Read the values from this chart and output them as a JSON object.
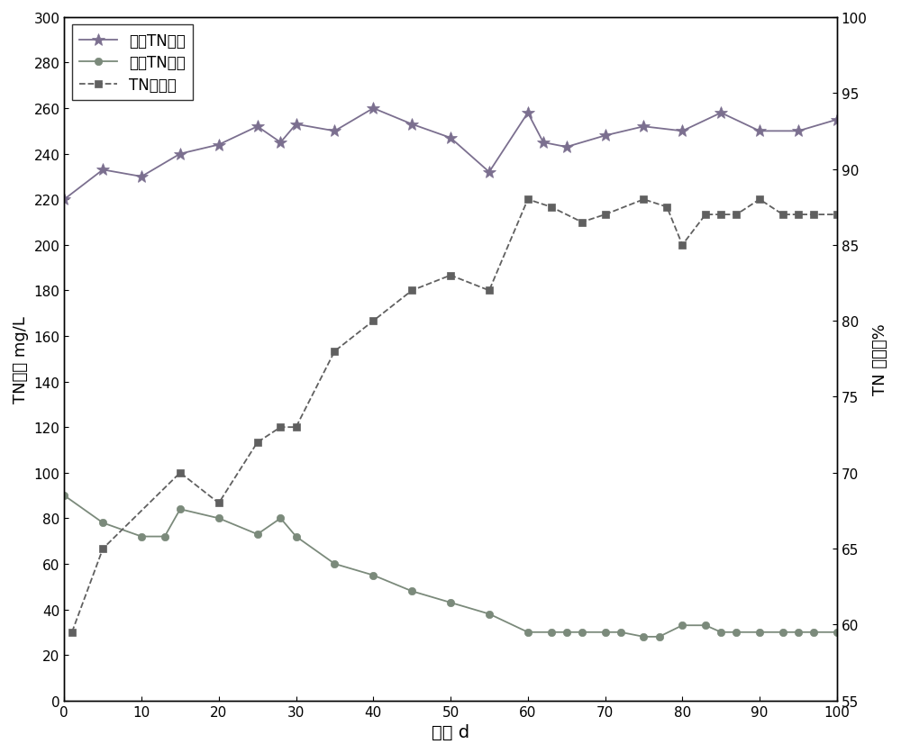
{
  "title": "",
  "xlabel": "时间 d",
  "ylabel_left": "TN浓度 mg/L",
  "ylabel_right": "TN 去除率%",
  "xlim": [
    0,
    100
  ],
  "ylim_left": [
    0,
    300
  ],
  "ylim_right": [
    55,
    100
  ],
  "xticks": [
    0,
    10,
    20,
    30,
    40,
    50,
    60,
    70,
    80,
    90,
    100
  ],
  "yticks_left": [
    0,
    20,
    40,
    60,
    80,
    100,
    120,
    140,
    160,
    180,
    200,
    220,
    240,
    260,
    280,
    300
  ],
  "yticks_right": [
    55,
    60,
    65,
    70,
    75,
    80,
    85,
    90,
    95,
    100
  ],
  "influent_x": [
    0,
    5,
    10,
    15,
    20,
    25,
    28,
    30,
    35,
    40,
    45,
    50,
    55,
    60,
    62,
    65,
    70,
    75,
    80,
    85,
    90,
    95,
    100
  ],
  "influent_y": [
    220,
    233,
    230,
    240,
    244,
    252,
    245,
    253,
    250,
    260,
    253,
    247,
    232,
    258,
    245,
    243,
    248,
    252,
    250,
    258,
    250,
    250,
    255
  ],
  "effluent_x": [
    0,
    5,
    10,
    13,
    15,
    20,
    25,
    28,
    30,
    35,
    40,
    45,
    50,
    55,
    60,
    63,
    65,
    67,
    70,
    72,
    75,
    77,
    80,
    83,
    85,
    87,
    90,
    93,
    95,
    97,
    100
  ],
  "effluent_y": [
    90,
    78,
    72,
    72,
    84,
    80,
    73,
    80,
    72,
    60,
    55,
    48,
    43,
    38,
    30,
    30,
    30,
    30,
    30,
    30,
    28,
    28,
    33,
    33,
    30,
    30,
    30,
    30,
    30,
    30,
    30
  ],
  "removal_x": [
    1,
    5,
    15,
    20,
    25,
    28,
    30,
    35,
    40,
    45,
    50,
    55,
    60,
    63,
    67,
    70,
    75,
    78,
    80,
    83,
    85,
    87,
    90,
    93,
    95,
    97,
    100
  ],
  "removal_y": [
    59.5,
    65,
    70,
    68,
    72,
    73,
    73,
    78,
    80,
    82,
    83,
    82,
    88,
    87.5,
    86.5,
    87,
    88,
    87.5,
    85,
    87,
    87,
    87,
    88,
    87,
    87,
    87,
    87
  ],
  "color_influent": "#7b6f8f",
  "color_effluent": "#7b8a7b",
  "color_removal": "#606060",
  "legend_entries": [
    "进水TN浓度",
    "出水TN浓度",
    "TN去除率"
  ],
  "figsize": [
    10.0,
    8.37
  ],
  "dpi": 100
}
